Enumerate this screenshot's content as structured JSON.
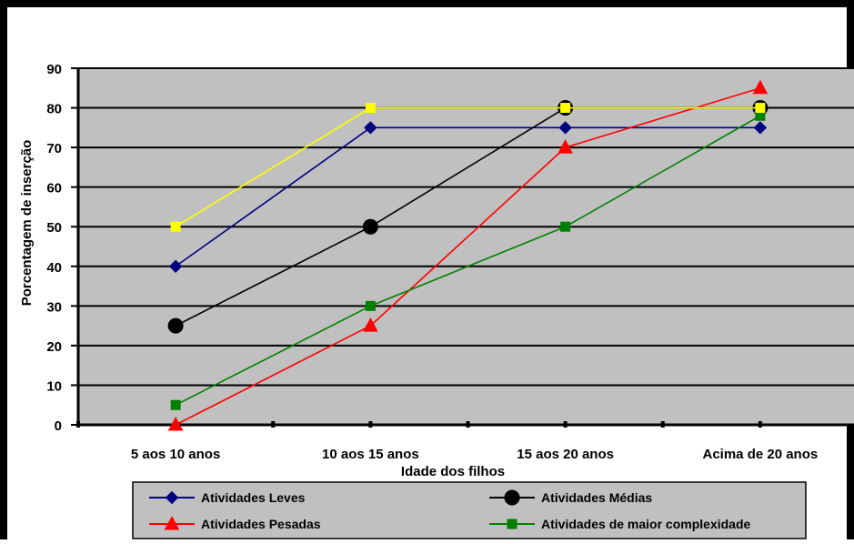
{
  "chart_data": {
    "type": "line",
    "title": "",
    "xlabel": "Idade dos filhos",
    "ylabel": "Porcentagem de inserção",
    "categories": [
      "5 aos 10 anos",
      "10 aos 15 anos",
      "15 aos 20 anos",
      "Acima de 20 anos"
    ],
    "ylim": [
      0,
      90
    ],
    "yticks": [
      0,
      10,
      20,
      30,
      40,
      50,
      60,
      70,
      80,
      90
    ],
    "grid": true,
    "legend_position": "bottom",
    "plot_background": "#C0C0C0",
    "series": [
      {
        "name": "Atividades Leves",
        "values": [
          40,
          75,
          75,
          75
        ],
        "color": "#000080",
        "marker": "diamond"
      },
      {
        "name": "Atividades Médias",
        "values": [
          25,
          50,
          80,
          80
        ],
        "color": "#000000",
        "marker": "circle"
      },
      {
        "name": "Atividades Pesadas",
        "values": [
          0,
          25,
          70,
          85
        ],
        "color": "#FF0000",
        "marker": "triangle"
      },
      {
        "name": "Atividades de maior complexidade",
        "values": [
          5,
          30,
          50,
          78
        ],
        "color": "#008000",
        "marker": "square"
      },
      {
        "name": "",
        "values": [
          50,
          80,
          80,
          80
        ],
        "color": "#FFFF00",
        "marker": "square"
      }
    ]
  }
}
